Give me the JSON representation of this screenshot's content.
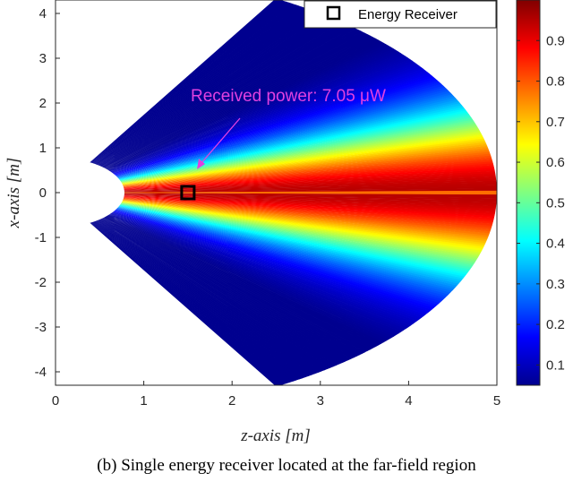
{
  "chart_data": {
    "type": "heatmap",
    "xlabel": "z-axis [m]",
    "ylabel": "x-axis [m]",
    "xlim": [
      0,
      5
    ],
    "ylim": [
      -4.3,
      4.3
    ],
    "x_ticks": [
      "0",
      "1",
      "2",
      "3",
      "4",
      "5"
    ],
    "y_ticks": [
      "4",
      "3",
      "2",
      "1",
      "0",
      "-1",
      "-2",
      "-3",
      "-4"
    ],
    "colorbar": {
      "colormap": "jet",
      "range": [
        0.05,
        1.0
      ],
      "ticks": [
        "0.1",
        "0.2",
        "0.3",
        "0.4",
        "0.5",
        "0.6",
        "0.7",
        "0.8",
        "0.9"
      ]
    },
    "legend": {
      "entries": [
        "Energy Receiver"
      ],
      "placement": "top-right"
    },
    "receiver": {
      "x": 1.5,
      "y": 0.0
    },
    "annotation": {
      "text": "Received power: 7.05 μW",
      "color": "#e040e0"
    },
    "region": {
      "sector_half_angle_deg": 60,
      "inner_radius": 0.78,
      "outer_radius": 5.0,
      "excluded_near_field_radius": 0.78
    }
  },
  "caption": "(b) Single energy receiver located at the far-field region"
}
